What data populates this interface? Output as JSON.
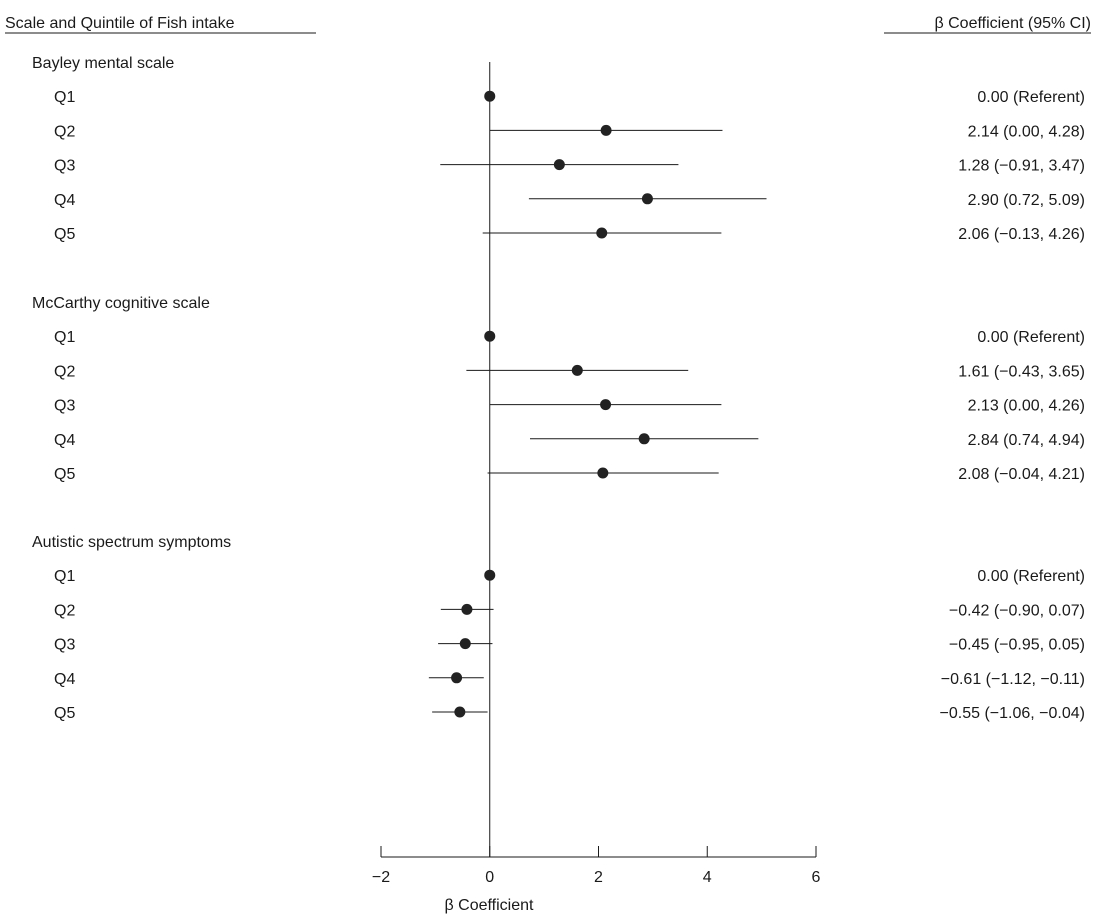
{
  "chart_data": {
    "type": "forest",
    "left_header": "Scale and Quintile of Fish intake",
    "right_header": "β Coefficient (95% CI)",
    "xlabel": "β Coefficient",
    "xlim": [
      -2,
      6
    ],
    "x_ticks": [
      -2,
      0,
      2,
      4,
      6
    ],
    "x_tick_labels": [
      "−2",
      "0",
      "2",
      "4",
      "6"
    ],
    "reference_line": 0,
    "grid": false,
    "marker_color": "#222222",
    "groups": [
      {
        "name": "Bayley mental scale",
        "rows": [
          {
            "label": "Q1",
            "estimate": 0.0,
            "lower": null,
            "upper": null,
            "ci_text": "0.00 (Referent)"
          },
          {
            "label": "Q2",
            "estimate": 2.14,
            "lower": 0.0,
            "upper": 4.28,
            "ci_text": "2.14 (0.00, 4.28)"
          },
          {
            "label": "Q3",
            "estimate": 1.28,
            "lower": -0.91,
            "upper": 3.47,
            "ci_text": "1.28 (−0.91, 3.47)"
          },
          {
            "label": "Q4",
            "estimate": 2.9,
            "lower": 0.72,
            "upper": 5.09,
            "ci_text": "2.90 (0.72, 5.09)"
          },
          {
            "label": "Q5",
            "estimate": 2.06,
            "lower": -0.13,
            "upper": 4.26,
            "ci_text": "2.06 (−0.13, 4.26)"
          }
        ]
      },
      {
        "name": "McCarthy cognitive scale",
        "rows": [
          {
            "label": "Q1",
            "estimate": 0.0,
            "lower": null,
            "upper": null,
            "ci_text": "0.00 (Referent)"
          },
          {
            "label": "Q2",
            "estimate": 1.61,
            "lower": -0.43,
            "upper": 3.65,
            "ci_text": "1.61 (−0.43, 3.65)"
          },
          {
            "label": "Q3",
            "estimate": 2.13,
            "lower": 0.0,
            "upper": 4.26,
            "ci_text": "2.13 (0.00, 4.26)"
          },
          {
            "label": "Q4",
            "estimate": 2.84,
            "lower": 0.74,
            "upper": 4.94,
            "ci_text": "2.84 (0.74, 4.94)"
          },
          {
            "label": "Q5",
            "estimate": 2.08,
            "lower": -0.04,
            "upper": 4.21,
            "ci_text": "2.08 (−0.04, 4.21)"
          }
        ]
      },
      {
        "name": "Autistic spectrum symptoms",
        "rows": [
          {
            "label": "Q1",
            "estimate": 0.0,
            "lower": null,
            "upper": null,
            "ci_text": "0.00 (Referent)"
          },
          {
            "label": "Q2",
            "estimate": -0.42,
            "lower": -0.9,
            "upper": 0.07,
            "ci_text": "−0.42 (−0.90, 0.07)"
          },
          {
            "label": "Q3",
            "estimate": -0.45,
            "lower": -0.95,
            "upper": 0.05,
            "ci_text": "−0.45 (−0.95, 0.05)"
          },
          {
            "label": "Q4",
            "estimate": -0.61,
            "lower": -1.12,
            "upper": -0.11,
            "ci_text": "−0.61 (−1.12, −0.11)"
          },
          {
            "label": "Q5",
            "estimate": -0.55,
            "lower": -1.06,
            "upper": -0.04,
            "ci_text": "−0.55 (−1.06, −0.04)"
          }
        ]
      }
    ]
  }
}
